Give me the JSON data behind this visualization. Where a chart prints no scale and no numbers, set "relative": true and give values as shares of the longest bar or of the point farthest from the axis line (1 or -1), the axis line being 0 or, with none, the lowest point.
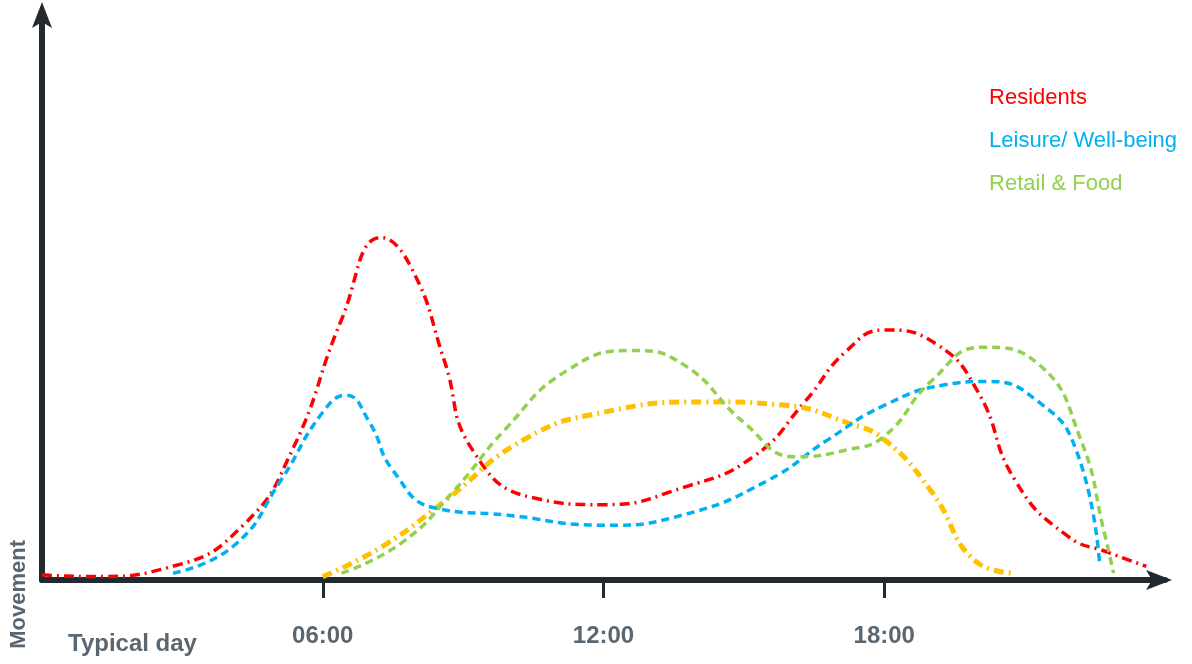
{
  "chart_data": {
    "type": "line",
    "relative": true,
    "xlabel": "Typical day",
    "ylabel": "Movement",
    "xlim": [
      0,
      24
    ],
    "xticks": [
      {
        "value": 6,
        "label": "06:00"
      },
      {
        "value": 12,
        "label": "12:00"
      },
      {
        "value": 18,
        "label": "18:00"
      }
    ],
    "legend": "top right",
    "grid": false,
    "marker": "none",
    "series": [
      {
        "name": "Residents",
        "color": "#ff0000",
        "line_style": "dashdot",
        "x": [
          0,
          1.05,
          2.8,
          4.3,
          5.35,
          6.4,
          7.25,
          7.9,
          8.6,
          9.2,
          10.5,
          12,
          13.7,
          15.2,
          16.3,
          17.2,
          18,
          19.1,
          20,
          20.8,
          21.9,
          22.8,
          23.6
        ],
        "values": [
          0.015,
          0.01,
          0.04,
          0.16,
          0.38,
          0.76,
          1,
          0.91,
          0.64,
          0.38,
          0.24,
          0.22,
          0.27,
          0.36,
          0.52,
          0.67,
          0.73,
          0.69,
          0.55,
          0.29,
          0.13,
          0.08,
          0.04
        ]
      },
      {
        "color": "#ffc000",
        "line_style": "dashdot",
        "x": [
          6,
          7.3,
          8.6,
          10.3,
          12,
          14.2,
          15.9,
          17.2,
          18,
          19,
          20,
          20.8
        ],
        "values": [
          0.01,
          0.1,
          0.23,
          0.41,
          0.49,
          0.52,
          0.51,
          0.46,
          0.41,
          0.26,
          0.05,
          0.02
        ]
      },
      {
        "name": "Leisure/ Well-being",
        "color": "#00b0f0",
        "line_style": "dashed",
        "x": [
          2.8,
          4.1,
          5.1,
          6,
          6.5,
          7,
          7.5,
          8.4,
          9.9,
          12,
          13.7,
          15.5,
          16.8,
          18,
          19.3,
          20.2,
          21.3,
          22.1,
          22.6
        ],
        "values": [
          0.02,
          0.1,
          0.29,
          0.49,
          0.54,
          0.46,
          0.32,
          0.21,
          0.19,
          0.16,
          0.19,
          0.29,
          0.41,
          0.51,
          0.57,
          0.58,
          0.52,
          0.38,
          0.05
        ]
      },
      {
        "name": "Retail & Food",
        "color": "#92d050",
        "line_style": "dashed",
        "x": [
          6.4,
          7.7,
          8.8,
          9.9,
          11.2,
          12.6,
          13.7,
          15,
          16.1,
          17.2,
          18,
          19,
          20.1,
          21.3,
          22.2,
          22.7,
          22.9
        ],
        "values": [
          0.02,
          0.11,
          0.26,
          0.44,
          0.61,
          0.67,
          0.63,
          0.46,
          0.36,
          0.38,
          0.42,
          0.58,
          0.68,
          0.63,
          0.41,
          0.14,
          0.02
        ]
      }
    ]
  }
}
